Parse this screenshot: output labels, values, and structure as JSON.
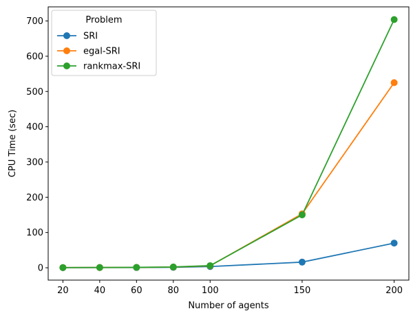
{
  "chart_data": {
    "type": "line",
    "title": "",
    "xlabel": "Number of agents",
    "ylabel": "CPU Time (sec)",
    "x": [
      20,
      40,
      60,
      80,
      100,
      150,
      200
    ],
    "xticks": [
      20,
      40,
      60,
      80,
      100,
      150,
      200
    ],
    "yticks": [
      0,
      100,
      200,
      300,
      400,
      500,
      600,
      700
    ],
    "xlim": [
      12,
      208
    ],
    "ylim": [
      -35,
      740
    ],
    "grid": false,
    "legend": {
      "title": "Problem",
      "placement": "top-left"
    },
    "series": [
      {
        "name": "SRI",
        "color": "#1f77b4",
        "values": [
          0.3,
          0.5,
          0.7,
          1.2,
          3.5,
          16,
          70
        ]
      },
      {
        "name": "egal-SRI",
        "color": "#ff7f0e",
        "values": [
          0.5,
          0.7,
          1.0,
          2.0,
          5.5,
          153,
          525
        ]
      },
      {
        "name": "rankmax-SRI",
        "color": "#2ca02c",
        "values": [
          0.6,
          0.8,
          1.1,
          2.2,
          6.0,
          150,
          704
        ]
      }
    ]
  }
}
